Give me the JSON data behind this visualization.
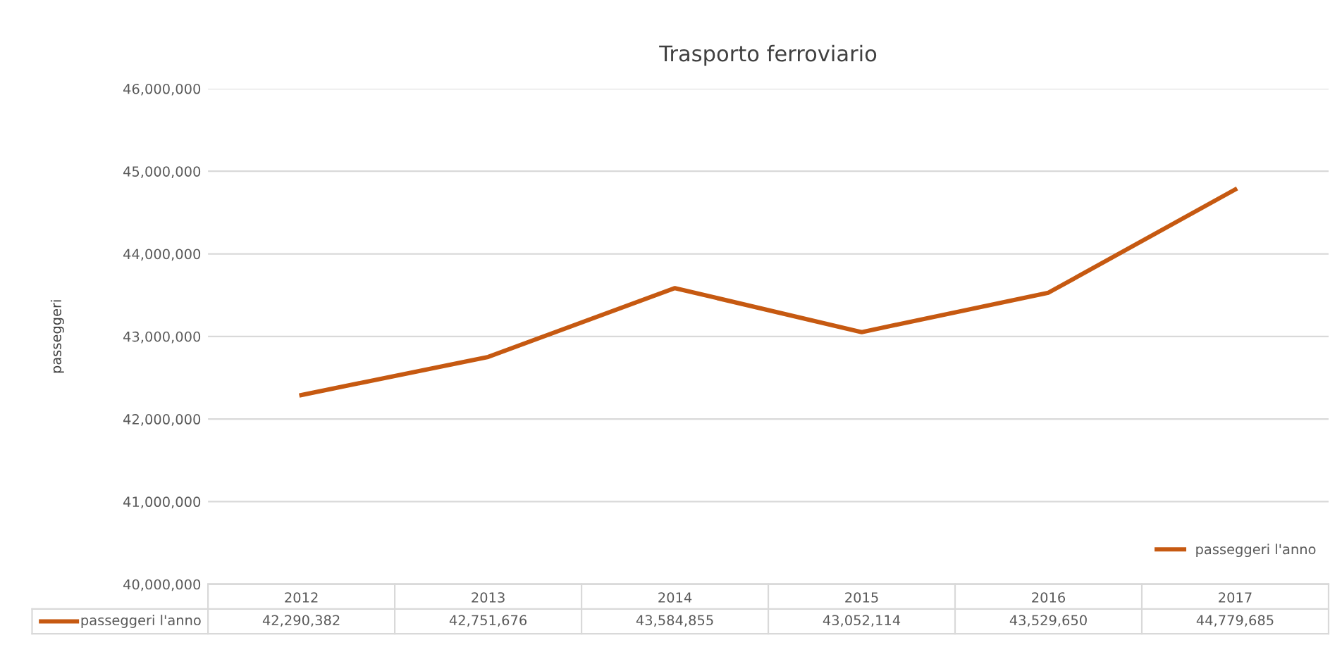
{
  "chart_data": {
    "type": "line",
    "title": "Trasporto ferroviario",
    "ylabel": "passeggeri",
    "categories": [
      "2012",
      "2013",
      "2014",
      "2015",
      "2016",
      "2017"
    ],
    "series": [
      {
        "name": "passeggeri l'anno",
        "color": "#c65911",
        "values": [
          42290382,
          42751676,
          43584855,
          43052114,
          43529650,
          44779685
        ],
        "value_labels": [
          "42,290,382",
          "42,751,676",
          "43,584,855",
          "43,052,114",
          "43,529,650",
          "44,779,685"
        ]
      }
    ],
    "ylim": [
      40000000,
      46000000
    ],
    "yticks": [
      {
        "value": 40000000,
        "label": "40,000,000"
      },
      {
        "value": 41000000,
        "label": "41,000,000"
      },
      {
        "value": 42000000,
        "label": "42,000,000"
      },
      {
        "value": 43000000,
        "label": "43,000,000"
      },
      {
        "value": 44000000,
        "label": "44,000,000"
      },
      {
        "value": 45000000,
        "label": "45,000,000"
      },
      {
        "value": 46000000,
        "label": "46,000,000"
      }
    ],
    "grid": "y",
    "legend": "bottom right",
    "marker": "none",
    "line_style": "solid"
  }
}
